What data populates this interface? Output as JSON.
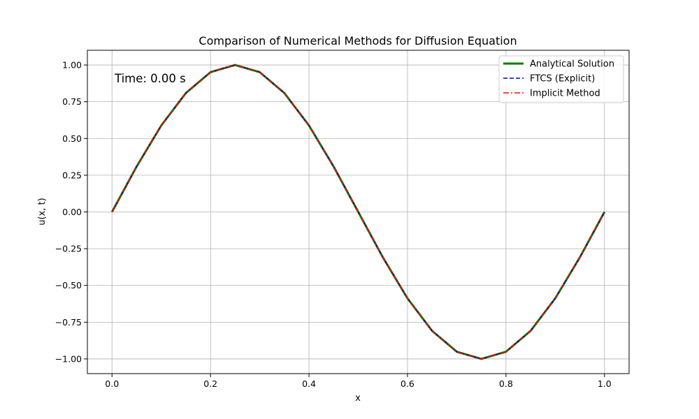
{
  "chart_data": {
    "type": "line",
    "title": "Comparison of Numerical Methods for Diffusion Equation",
    "xlabel": "x",
    "ylabel": "u(x, t)",
    "xlim": [
      -0.05,
      1.05
    ],
    "ylim": [
      -1.1,
      1.1
    ],
    "xticks": [
      0.0,
      0.2,
      0.4,
      0.6,
      0.8,
      1.0
    ],
    "xtick_labels": [
      "0.0",
      "0.2",
      "0.4",
      "0.6",
      "0.8",
      "1.0"
    ],
    "yticks": [
      -1.0,
      -0.75,
      -0.5,
      -0.25,
      0.0,
      0.25,
      0.5,
      0.75,
      1.0
    ],
    "ytick_labels": [
      "−1.00",
      "−0.75",
      "−0.50",
      "−0.25",
      "0.00",
      "0.25",
      "0.50",
      "0.75",
      "1.00"
    ],
    "grid": true,
    "legend_position": "top-right",
    "annotation": "Time: 0.00 s",
    "x": [
      0.0,
      0.05,
      0.1,
      0.15,
      0.2,
      0.25,
      0.3,
      0.35,
      0.4,
      0.45,
      0.5,
      0.55,
      0.6,
      0.65,
      0.7,
      0.75,
      0.8,
      0.85,
      0.9,
      0.95,
      1.0
    ],
    "series": [
      {
        "name": "Analytical Solution",
        "color": "#008000",
        "style": "solid",
        "values": [
          0.0,
          0.309,
          0.588,
          0.809,
          0.951,
          1.0,
          0.951,
          0.809,
          0.588,
          0.309,
          0.0,
          -0.309,
          -0.588,
          -0.809,
          -0.951,
          -1.0,
          -0.951,
          -0.809,
          -0.588,
          -0.309,
          0.0
        ]
      },
      {
        "name": "FTCS (Explicit)",
        "color": "#0000cc",
        "style": "dashed",
        "values": [
          0.0,
          0.309,
          0.588,
          0.809,
          0.951,
          1.0,
          0.951,
          0.809,
          0.588,
          0.309,
          0.0,
          -0.309,
          -0.588,
          -0.809,
          -0.951,
          -1.0,
          -0.951,
          -0.809,
          -0.588,
          -0.309,
          0.0
        ]
      },
      {
        "name": "Implicit Method",
        "color": "#ff0000",
        "style": "dashdot",
        "values": [
          0.0,
          0.309,
          0.588,
          0.809,
          0.951,
          1.0,
          0.951,
          0.809,
          0.588,
          0.309,
          0.0,
          -0.309,
          -0.588,
          -0.809,
          -0.951,
          -1.0,
          -0.951,
          -0.809,
          -0.588,
          -0.309,
          0.0
        ]
      }
    ]
  }
}
